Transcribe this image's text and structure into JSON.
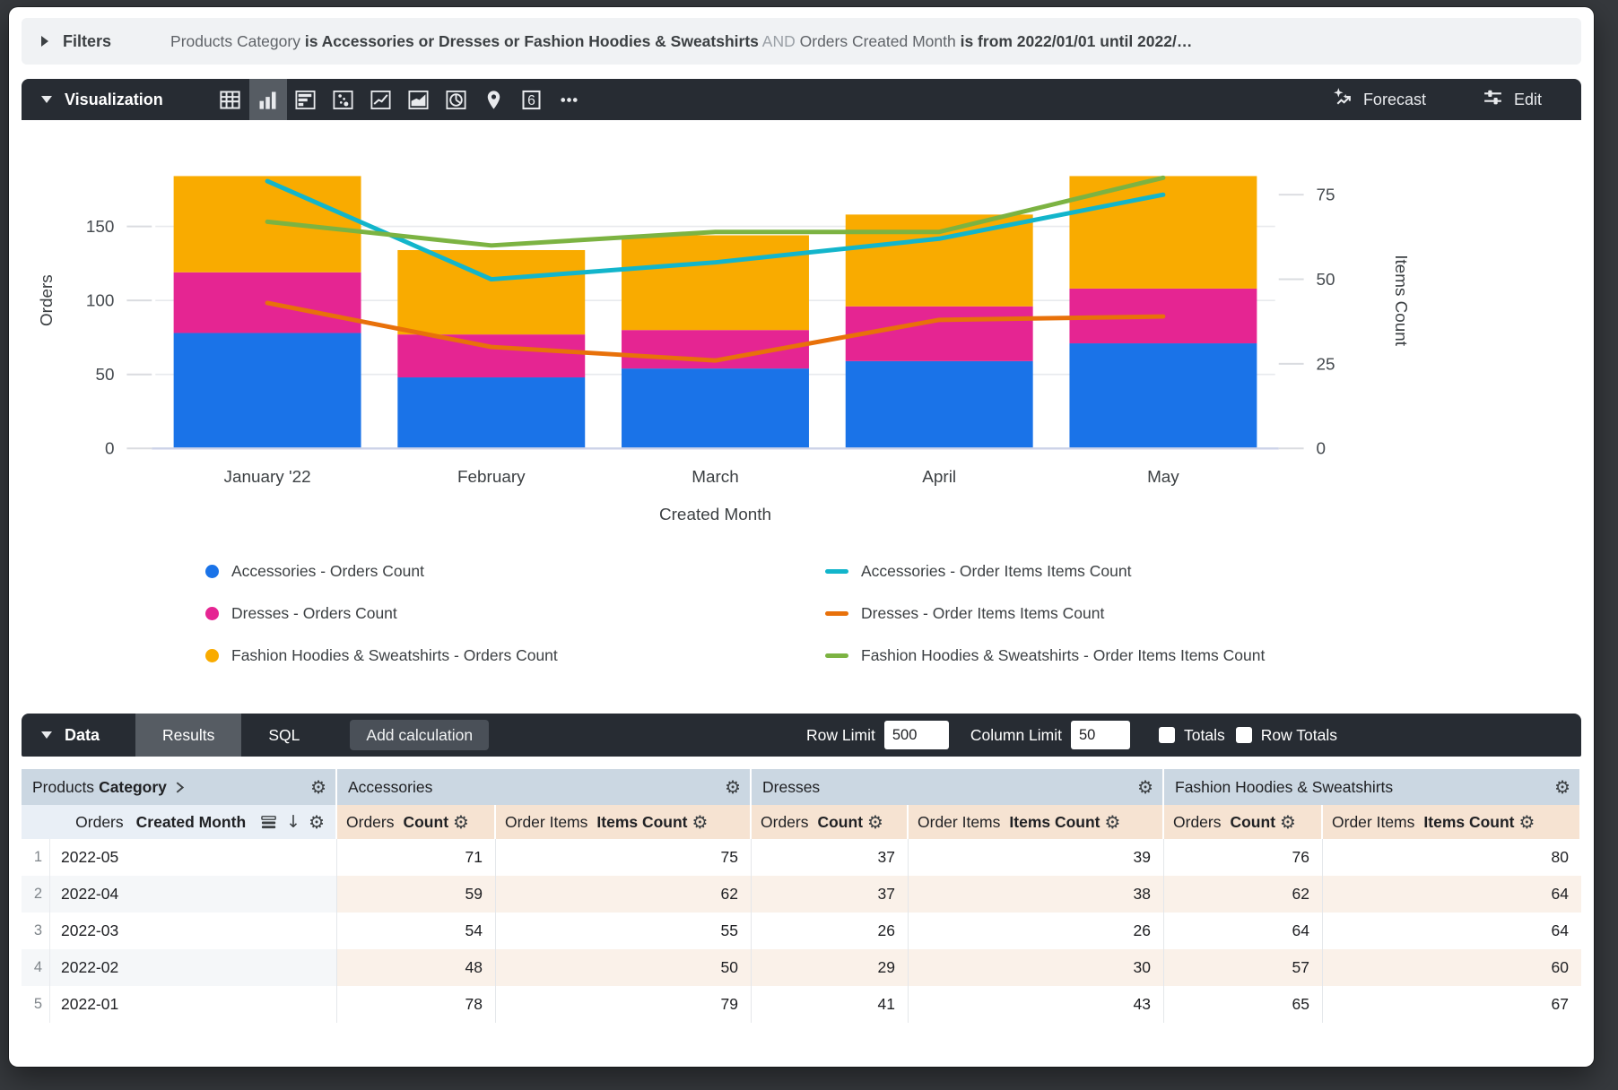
{
  "filters": {
    "label": "Filters",
    "segments": [
      {
        "text": "Products Category ",
        "style": "dim"
      },
      {
        "text": "is Accessories or Dresses or Fashion Hoodies & Sweatshirts",
        "style": "bold"
      },
      {
        "text": " AND ",
        "style": "and"
      },
      {
        "text": "Orders Created Month ",
        "style": "dim"
      },
      {
        "text": "is from 2022/01/01 until 2022/…",
        "style": "bold"
      }
    ]
  },
  "viz_toolbar": {
    "title": "Visualization",
    "icons": [
      {
        "icon": "table-chart",
        "selected": false
      },
      {
        "icon": "column-chart",
        "selected": true
      },
      {
        "icon": "bar-chart",
        "selected": false
      },
      {
        "icon": "scatter-chart",
        "selected": false
      },
      {
        "icon": "line-chart",
        "selected": false
      },
      {
        "icon": "area-chart",
        "selected": false
      },
      {
        "icon": "pie-chart",
        "selected": false
      },
      {
        "icon": "map-pin",
        "selected": false
      },
      {
        "icon": "single-value",
        "selected": false
      },
      {
        "icon": "more",
        "selected": false
      }
    ],
    "single_value_glyph": "6",
    "forecast_label": "Forecast",
    "edit_label": "Edit"
  },
  "chart_data": {
    "type": "bar",
    "subtype": "stacked-columns-with-lines",
    "x_categories": [
      "January '22",
      "February",
      "March",
      "April",
      "May"
    ],
    "xlabel": "Created Month",
    "left_axis": {
      "title": "Orders",
      "ticks": [
        0,
        50,
        100,
        150
      ],
      "max": 200
    },
    "right_axis": {
      "title": "Items Count",
      "ticks": [
        0,
        25,
        50,
        75
      ],
      "max": 87.5
    },
    "series": [
      {
        "name": "Accessories - Orders Count",
        "axis": "left",
        "kind": "bar",
        "color": "#1A73E8",
        "values": [
          78,
          48,
          54,
          59,
          71
        ]
      },
      {
        "name": "Dresses - Orders Count",
        "axis": "left",
        "kind": "bar",
        "color": "#E52592",
        "values": [
          41,
          29,
          26,
          37,
          37
        ]
      },
      {
        "name": "Fashion Hoodies & Sweatshirts - Orders Count",
        "axis": "left",
        "kind": "bar",
        "color": "#F9AB00",
        "values": [
          65,
          57,
          64,
          62,
          76
        ]
      },
      {
        "name": "Accessories - Order Items Items Count",
        "axis": "right",
        "kind": "line",
        "color": "#12B5CB",
        "values": [
          79,
          50,
          55,
          62,
          75
        ]
      },
      {
        "name": "Dresses - Order Items Items Count",
        "axis": "right",
        "kind": "line",
        "color": "#E8710A",
        "values": [
          43,
          30,
          26,
          38,
          39
        ]
      },
      {
        "name": "Fashion Hoodies & Sweatshirts - Order Items Items Count",
        "axis": "right",
        "kind": "line",
        "color": "#7CB342",
        "values": [
          67,
          60,
          64,
          64,
          80
        ]
      }
    ],
    "legend_position": "bottom",
    "grid": true
  },
  "data_toolbar": {
    "title": "Data",
    "tabs": [
      "Results",
      "SQL"
    ],
    "active_tab": "Results",
    "add_calculation_label": "Add calculation",
    "row_limit_label": "Row Limit",
    "row_limit_value": "500",
    "column_limit_label": "Column Limit",
    "column_limit_value": "50",
    "totals_label": "Totals",
    "row_totals_label": "Row Totals"
  },
  "table": {
    "group_headers": [
      {
        "regular": "Products",
        "bold": "Category",
        "chevron": true
      },
      {
        "label": "Accessories"
      },
      {
        "label": "Dresses"
      },
      {
        "label": "Fashion Hoodies & Sweatshirts"
      }
    ],
    "dimension_header": {
      "regular": "Orders",
      "bold": "Created Month"
    },
    "measure_headers": [
      {
        "regular": "Orders",
        "bold": "Count"
      },
      {
        "regular": "Order Items",
        "bold": "Items Count"
      },
      {
        "regular": "Orders",
        "bold": "Count"
      },
      {
        "regular": "Order Items",
        "bold": "Items Count"
      },
      {
        "regular": "Orders",
        "bold": "Count"
      },
      {
        "regular": "Order Items",
        "bold": "Items Count"
      }
    ],
    "rows": [
      {
        "num": "1",
        "month": "2022-05",
        "values": [
          71,
          75,
          37,
          39,
          76,
          80
        ]
      },
      {
        "num": "2",
        "month": "2022-04",
        "values": [
          59,
          62,
          37,
          38,
          62,
          64
        ]
      },
      {
        "num": "3",
        "month": "2022-03",
        "values": [
          54,
          55,
          26,
          26,
          64,
          64
        ]
      },
      {
        "num": "4",
        "month": "2022-02",
        "values": [
          48,
          50,
          29,
          30,
          57,
          60
        ]
      },
      {
        "num": "5",
        "month": "2022-01",
        "values": [
          78,
          79,
          41,
          43,
          65,
          67
        ]
      }
    ]
  }
}
